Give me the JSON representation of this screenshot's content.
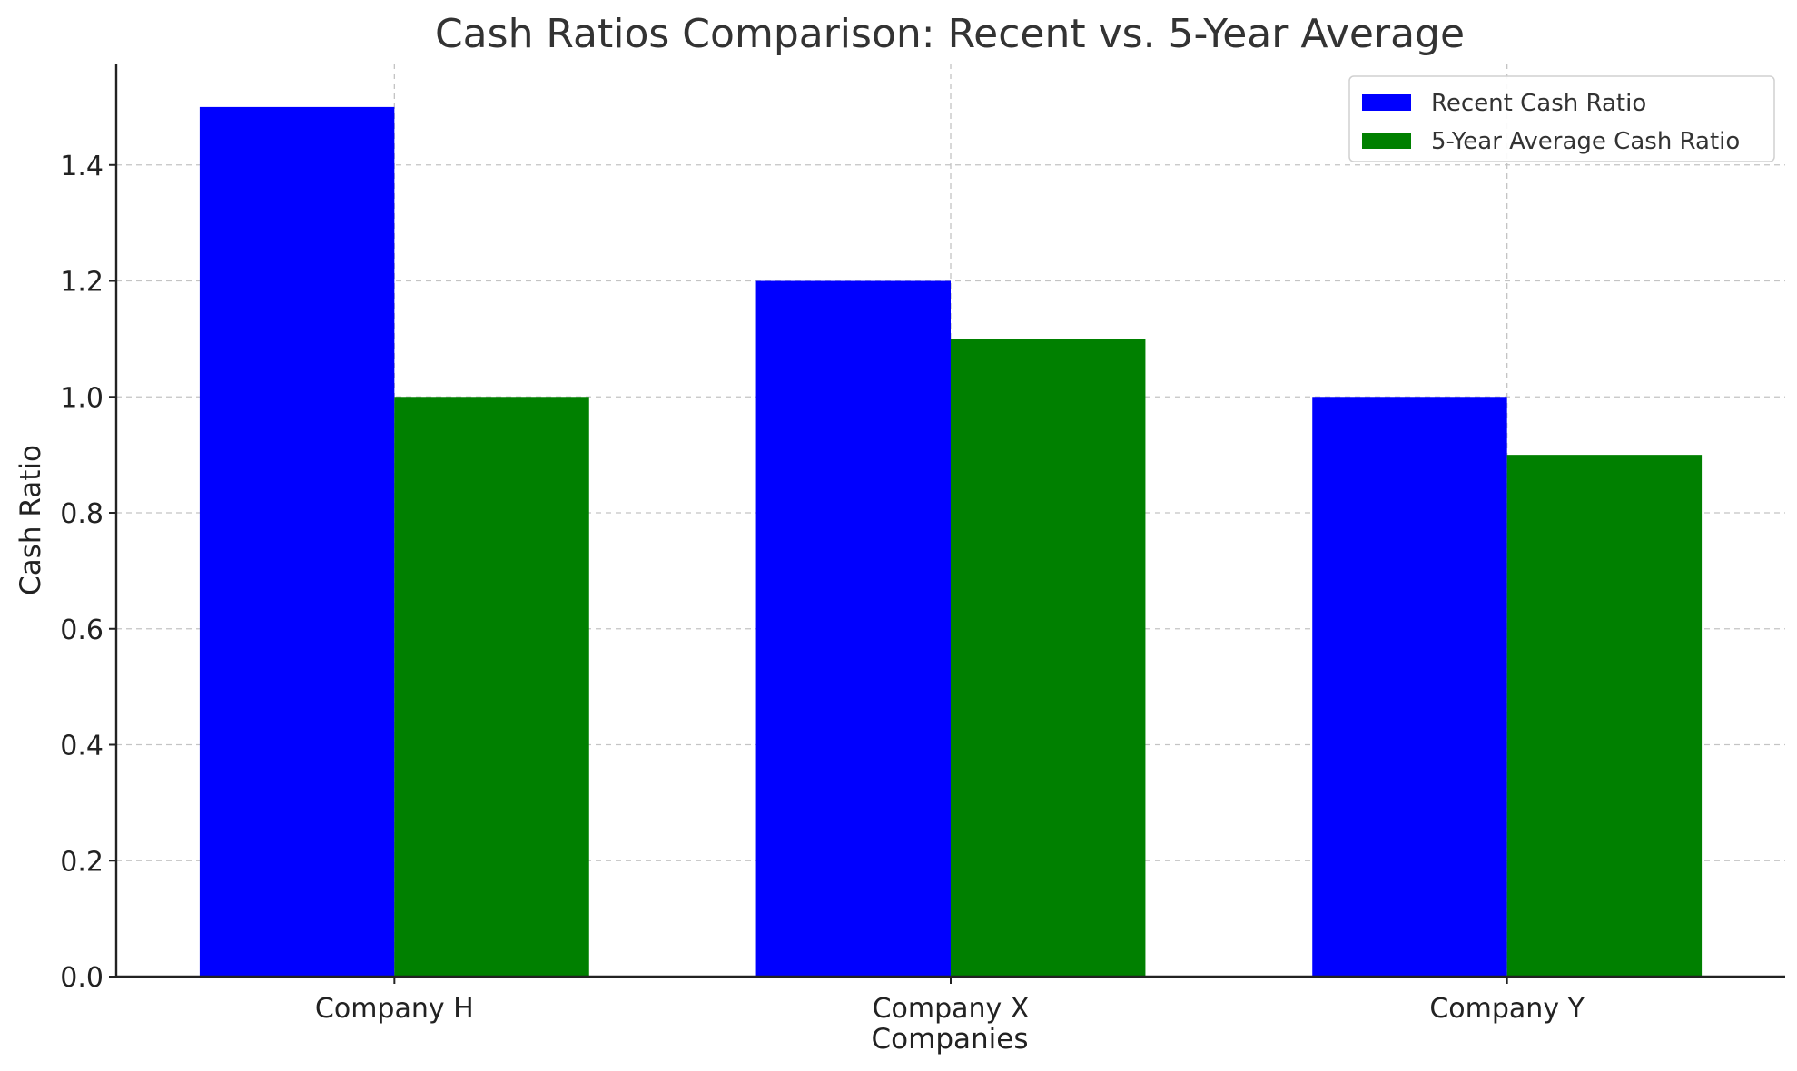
{
  "chart_data": {
    "type": "bar",
    "title": "Cash Ratios Comparison: Recent vs. 5-Year Average",
    "xlabel": "Companies",
    "ylabel": "Cash Ratio",
    "categories": [
      "Company H",
      "Company X",
      "Company Y"
    ],
    "series": [
      {
        "name": "Recent Cash Ratio",
        "color": "#0000ff",
        "values": [
          1.5,
          1.2,
          1.0
        ]
      },
      {
        "name": "5-Year Average Cash Ratio",
        "color": "#008000",
        "values": [
          1.0,
          1.1,
          0.9
        ]
      }
    ],
    "ylim": [
      0,
      1.575
    ],
    "yticks": [
      0.0,
      0.2,
      0.4,
      0.6,
      0.8,
      1.0,
      1.2,
      1.4
    ],
    "ytick_labels": [
      "0.0",
      "0.2",
      "0.4",
      "0.6",
      "0.8",
      "1.0",
      "1.2",
      "1.4"
    ],
    "grid": true,
    "legend_position": "top-right"
  }
}
